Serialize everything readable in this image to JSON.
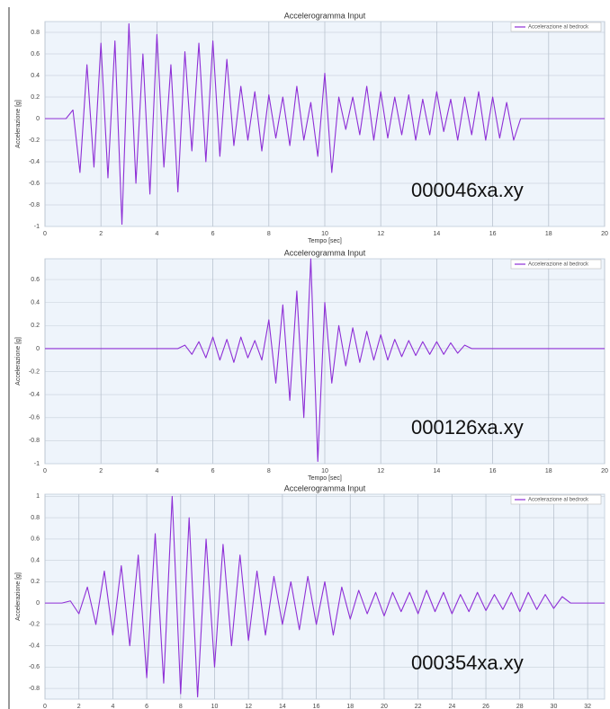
{
  "chart_data": [
    {
      "type": "line",
      "title": "Accelerogramma Input",
      "x_label": "Tempo [sec]",
      "y_label": "Accelerazione [g]",
      "annotation": "000046xa.xy",
      "grid": true,
      "legend": "upper right",
      "x": [
        0,
        0.25,
        0.5,
        0.75,
        1,
        1.25,
        1.5,
        1.75,
        2,
        2.25,
        2.5,
        2.75,
        3,
        3.25,
        3.5,
        3.75,
        4,
        4.25,
        4.5,
        4.75,
        5,
        5.25,
        5.5,
        5.75,
        6,
        6.25,
        6.5,
        6.75,
        7,
        7.25,
        7.5,
        7.75,
        8,
        8.25,
        8.5,
        8.75,
        9,
        9.25,
        9.5,
        9.75,
        10,
        10.25,
        10.5,
        10.75,
        11,
        11.25,
        11.5,
        11.75,
        12,
        12.25,
        12.5,
        12.75,
        13,
        13.25,
        13.5,
        13.75,
        14,
        14.25,
        14.5,
        14.75,
        15,
        15.25,
        15.5,
        15.75,
        16,
        16.25,
        16.5,
        16.75,
        17,
        17.25,
        17.5,
        17.75,
        18,
        18.25,
        18.5,
        18.75,
        19,
        19.25,
        19.5,
        19.75,
        20
      ],
      "series": [
        {
          "name": "Accelerazione al bedrock",
          "color": "#8e2fd6",
          "values": [
            0,
            0,
            0,
            0,
            0.08,
            -0.5,
            0.5,
            -0.45,
            0.7,
            -0.55,
            0.72,
            -0.98,
            0.88,
            -0.6,
            0.6,
            -0.7,
            0.78,
            -0.45,
            0.5,
            -0.68,
            0.62,
            -0.3,
            0.7,
            -0.4,
            0.72,
            -0.35,
            0.55,
            -0.25,
            0.3,
            -0.2,
            0.25,
            -0.3,
            0.22,
            -0.18,
            0.2,
            -0.25,
            0.3,
            -0.2,
            0.15,
            -0.35,
            0.42,
            -0.5,
            0.2,
            -0.1,
            0.2,
            -0.15,
            0.3,
            -0.2,
            0.25,
            -0.18,
            0.2,
            -0.15,
            0.22,
            -0.2,
            0.18,
            -0.15,
            0.25,
            -0.12,
            0.18,
            -0.2,
            0.2,
            -0.15,
            0.25,
            -0.2,
            0.2,
            -0.18,
            0.15,
            -0.2,
            0,
            0,
            0,
            0,
            0,
            0,
            0,
            0,
            0,
            0,
            0,
            0,
            0
          ]
        }
      ],
      "xlim": [
        0,
        20
      ],
      "xticks": [
        0,
        2,
        4,
        6,
        8,
        10,
        12,
        14,
        16,
        18,
        20
      ],
      "ylim": [
        -1,
        0.9
      ],
      "yticks": [
        -1,
        -0.8,
        -0.6,
        -0.4,
        -0.2,
        0,
        0.2,
        0.4,
        0.6,
        0.8
      ]
    },
    {
      "type": "line",
      "title": "Accelerogramma Input",
      "x_label": "Tempo [sec]",
      "y_label": "Accelerazione [g]",
      "annotation": "000126xa.xy",
      "grid": true,
      "legend": "upper right",
      "x": [
        0,
        0.25,
        0.5,
        0.75,
        1,
        1.25,
        1.5,
        1.75,
        2,
        2.25,
        2.5,
        2.75,
        3,
        3.25,
        3.5,
        3.75,
        4,
        4.25,
        4.5,
        4.75,
        5,
        5.25,
        5.5,
        5.75,
        6,
        6.25,
        6.5,
        6.75,
        7,
        7.25,
        7.5,
        7.75,
        8,
        8.25,
        8.5,
        8.75,
        9,
        9.25,
        9.5,
        9.75,
        10,
        10.25,
        10.5,
        10.75,
        11,
        11.25,
        11.5,
        11.75,
        12,
        12.25,
        12.5,
        12.75,
        13,
        13.25,
        13.5,
        13.75,
        14,
        14.25,
        14.5,
        14.75,
        15,
        15.25,
        15.5,
        15.75,
        16,
        16.25,
        16.5,
        16.75,
        17,
        17.25,
        17.5,
        17.75,
        18,
        18.25,
        18.5,
        18.75,
        19,
        19.25,
        19.5,
        19.75,
        20
      ],
      "series": [
        {
          "name": "Accelerazione al bedrock",
          "color": "#8e2fd6",
          "values": [
            0,
            0,
            0,
            0,
            0,
            0,
            0,
            0,
            0,
            0,
            0,
            0,
            0,
            0,
            0,
            0,
            0,
            0,
            0,
            0,
            0.03,
            -0.05,
            0.06,
            -0.08,
            0.1,
            -0.1,
            0.08,
            -0.12,
            0.1,
            -0.08,
            0.07,
            -0.1,
            0.25,
            -0.3,
            0.38,
            -0.45,
            0.5,
            -0.6,
            0.78,
            -0.98,
            0.4,
            -0.3,
            0.2,
            -0.15,
            0.18,
            -0.12,
            0.15,
            -0.1,
            0.12,
            -0.1,
            0.08,
            -0.07,
            0.07,
            -0.06,
            0.06,
            -0.05,
            0.06,
            -0.05,
            0.05,
            -0.04,
            0.03,
            0,
            0,
            0,
            0,
            0,
            0,
            0,
            0,
            0,
            0,
            0,
            0,
            0,
            0,
            0,
            0,
            0,
            0,
            0,
            0
          ]
        }
      ],
      "xlim": [
        0,
        20
      ],
      "xticks": [
        0,
        2,
        4,
        6,
        8,
        10,
        12,
        14,
        16,
        18,
        20
      ],
      "ylim": [
        -1,
        0.78
      ],
      "yticks": [
        -1,
        -0.8,
        -0.6,
        -0.4,
        -0.2,
        0,
        0.2,
        0.4,
        0.6
      ]
    },
    {
      "type": "line",
      "title": "Accelerogramma Input",
      "x_label": "Tempo [sec]",
      "y_label": "Accelerazione [g]",
      "annotation": "000354xa.xy",
      "grid": true,
      "legend": "upper right",
      "x": [
        0,
        0.5,
        1,
        1.5,
        2,
        2.5,
        3,
        3.5,
        4,
        4.5,
        5,
        5.5,
        6,
        6.5,
        7,
        7.5,
        8,
        8.5,
        9,
        9.5,
        10,
        10.5,
        11,
        11.5,
        12,
        12.5,
        13,
        13.5,
        14,
        14.5,
        15,
        15.5,
        16,
        16.5,
        17,
        17.5,
        18,
        18.5,
        19,
        19.5,
        20,
        20.5,
        21,
        21.5,
        22,
        22.5,
        23,
        23.5,
        24,
        24.5,
        25,
        25.5,
        26,
        26.5,
        27,
        27.5,
        28,
        28.5,
        29,
        29.5,
        30,
        30.5,
        31,
        31.5,
        32,
        32.5,
        33
      ],
      "series": [
        {
          "name": "Accelerazione al bedrock",
          "color": "#8e2fd6",
          "values": [
            0,
            0,
            0,
            0.02,
            -0.1,
            0.15,
            -0.2,
            0.3,
            -0.3,
            0.35,
            -0.4,
            0.45,
            -0.7,
            0.65,
            -0.75,
            1,
            -0.85,
            0.8,
            -0.88,
            0.6,
            -0.6,
            0.55,
            -0.4,
            0.45,
            -0.35,
            0.3,
            -0.3,
            0.25,
            -0.2,
            0.2,
            -0.25,
            0.25,
            -0.2,
            0.2,
            -0.3,
            0.15,
            -0.15,
            0.12,
            -0.1,
            0.1,
            -0.12,
            0.1,
            -0.08,
            0.1,
            -0.1,
            0.12,
            -0.08,
            0.1,
            -0.1,
            0.08,
            -0.08,
            0.1,
            -0.07,
            0.08,
            -0.06,
            0.1,
            -0.08,
            0.1,
            -0.06,
            0.08,
            -0.05,
            0.06,
            0,
            0,
            0,
            0,
            0
          ]
        }
      ],
      "xlim": [
        0,
        33
      ],
      "xticks": [
        0,
        2,
        4,
        6,
        8,
        10,
        12,
        14,
        16,
        18,
        20,
        22,
        24,
        26,
        28,
        30,
        32
      ],
      "ylim": [
        -0.9,
        1.02
      ],
      "yticks": [
        -0.8,
        -0.6,
        -0.4,
        -0.2,
        0,
        0.2,
        0.4,
        0.6,
        0.8,
        1
      ]
    }
  ]
}
